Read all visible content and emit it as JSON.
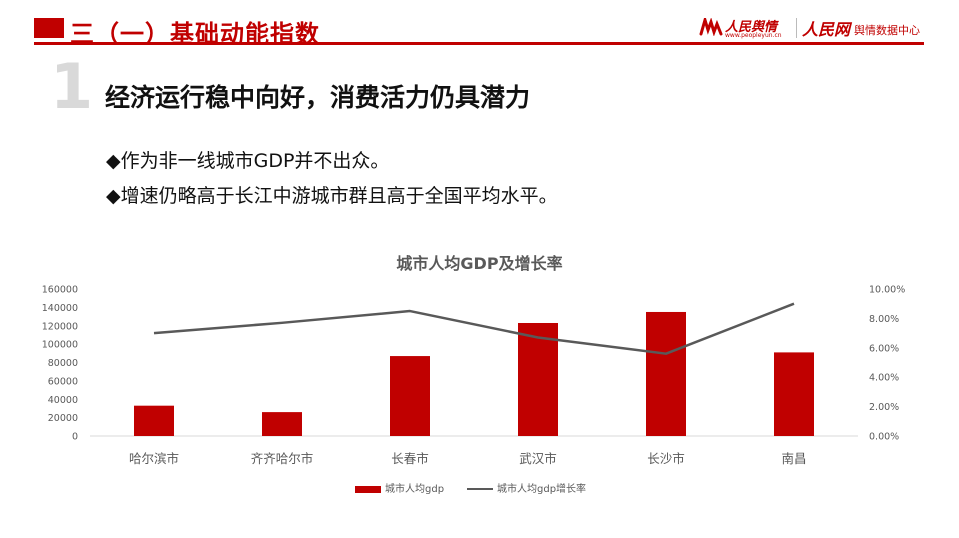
{
  "header": {
    "title": "三（一）基础动能指数",
    "logo_text_1": "人民舆情",
    "logo_url_1": "www.peopleyun.cn",
    "logo_text_2": "人民网",
    "logo_sub_2": "舆情数据中心"
  },
  "section": {
    "number": "1",
    "title": "经济运行稳中向好，消费活力仍具潜力",
    "bullets": [
      "◆作为非一线城市GDP并不出众。",
      "◆增速仍略高于长江中游城市群且高于全国平均水平。"
    ]
  },
  "colors": {
    "accent": "#c00000",
    "line": "#595959",
    "axis_text": "#595959"
  },
  "chart_data": {
    "type": "bar",
    "title": "城市人均GDP及增长率",
    "categories": [
      "哈尔滨市",
      "齐齐哈尔市",
      "长春市",
      "武汉市",
      "长沙市",
      "南昌"
    ],
    "series": [
      {
        "name": "城市人均gdp",
        "type": "bar",
        "axis": "left",
        "values": [
          33000,
          26000,
          87000,
          123000,
          135000,
          91000
        ]
      },
      {
        "name": "城市人均gdp增长率",
        "type": "line",
        "axis": "right",
        "values": [
          7.0,
          7.7,
          8.5,
          6.7,
          5.6,
          9.0
        ]
      }
    ],
    "ylim_left": [
      0,
      160000
    ],
    "yticks_left": [
      "160000",
      "140000",
      "120000",
      "100000",
      "80000",
      "60000",
      "40000",
      "20000",
      "0"
    ],
    "ylim_right": [
      0,
      10
    ],
    "yticks_right": [
      "10.00%",
      "8.00%",
      "6.00%",
      "4.00%",
      "2.00%",
      "0.00%"
    ],
    "legend_position": "bottom",
    "grid": false
  }
}
